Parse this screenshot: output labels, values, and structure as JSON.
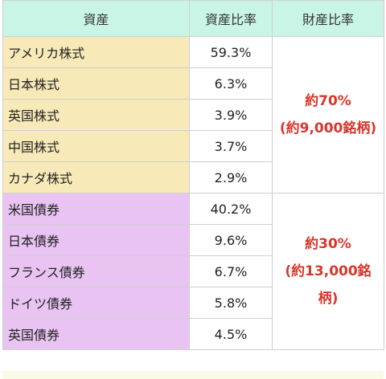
{
  "table": {
    "headers": [
      "資産",
      "資産比率",
      "財産比率"
    ],
    "groups": [
      {
        "kind": "stock",
        "summary_line1": "約70%",
        "summary_line2": "(約9,000銘柄)",
        "rows": [
          {
            "asset": "アメリカ株式",
            "ratio": "59.3%"
          },
          {
            "asset": "日本株式",
            "ratio": "6.3%"
          },
          {
            "asset": "英国株式",
            "ratio": "3.9%"
          },
          {
            "asset": "中国株式",
            "ratio": "3.7%"
          },
          {
            "asset": "カナダ株式",
            "ratio": "2.9%"
          }
        ]
      },
      {
        "kind": "bond",
        "summary_line1": "約30%",
        "summary_line2": "(約13,000銘",
        "summary_line3": "柄)",
        "rows": [
          {
            "asset": "米国債券",
            "ratio": "40.2%"
          },
          {
            "asset": "日本債券",
            "ratio": "9.6%"
          },
          {
            "asset": "フランス債券",
            "ratio": "6.7%"
          },
          {
            "asset": "ドイツ債券",
            "ratio": "5.8%"
          },
          {
            "asset": "英国債券",
            "ratio": "4.5%"
          }
        ]
      }
    ],
    "colors": {
      "header_bg": "#c9f5e6",
      "stock_bg": "#f7eab8",
      "bond_bg": "#e9c4f2",
      "summary_text": "#d9362b"
    }
  }
}
